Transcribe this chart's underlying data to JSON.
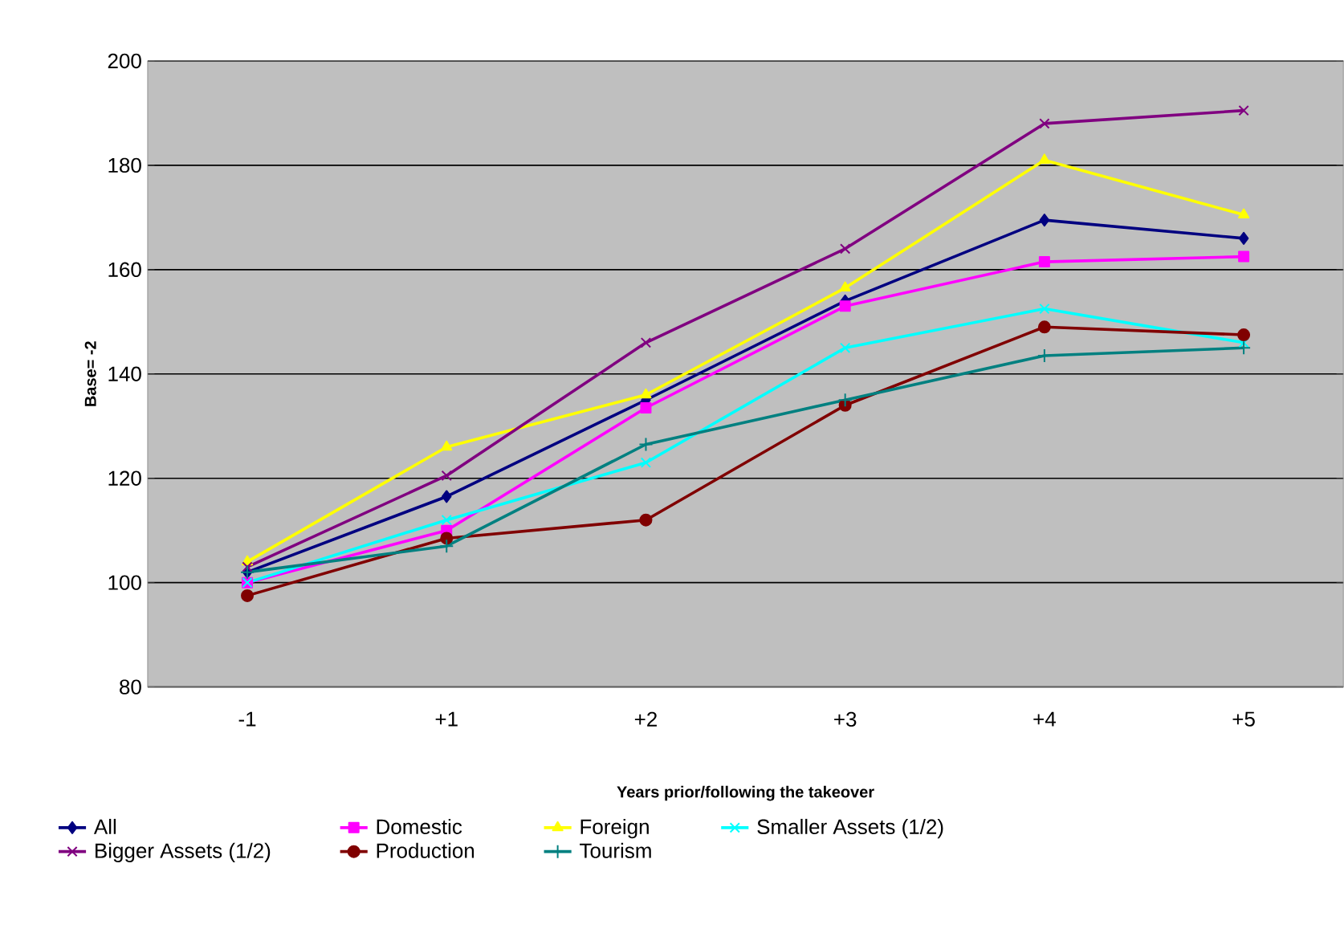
{
  "chart_data": {
    "type": "line",
    "xlabel": "Years prior/following the takeover",
    "ylabel": "Base= -2",
    "categories": [
      "-1",
      "+1",
      "+2",
      "+3",
      "+4",
      "+5"
    ],
    "ylim": [
      80,
      200
    ],
    "yticks": [
      80,
      100,
      120,
      140,
      160,
      180,
      200
    ],
    "grid": "y",
    "legend": "bottom",
    "series": [
      {
        "name": "All",
        "color": "#000080",
        "marker": "diamond",
        "values": [
          102,
          116.5,
          135,
          154,
          169.5,
          166
        ]
      },
      {
        "name": "Domestic",
        "color": "#ff00ff",
        "marker": "square",
        "values": [
          100,
          110,
          133.5,
          153,
          161.5,
          162.5
        ]
      },
      {
        "name": "Foreign",
        "color": "#ffff00",
        "marker": "triangle",
        "values": [
          104,
          126,
          136,
          156.5,
          181,
          170.5
        ]
      },
      {
        "name": "Smaller Assets (1/2)",
        "color": "#00ffff",
        "marker": "cross",
        "values": [
          100,
          112,
          123,
          145,
          152.5,
          146
        ]
      },
      {
        "name": "Bigger Assets (1/2)",
        "color": "#800080",
        "marker": "cross",
        "values": [
          103,
          120.5,
          146,
          164,
          188,
          190.5
        ]
      },
      {
        "name": "Production",
        "color": "#800000",
        "marker": "circle",
        "values": [
          97.5,
          108.5,
          112,
          134,
          149,
          147.5
        ]
      },
      {
        "name": "Tourism",
        "color": "#008080",
        "marker": "plus",
        "values": [
          102,
          107,
          126.5,
          135,
          143.5,
          145
        ]
      }
    ]
  }
}
